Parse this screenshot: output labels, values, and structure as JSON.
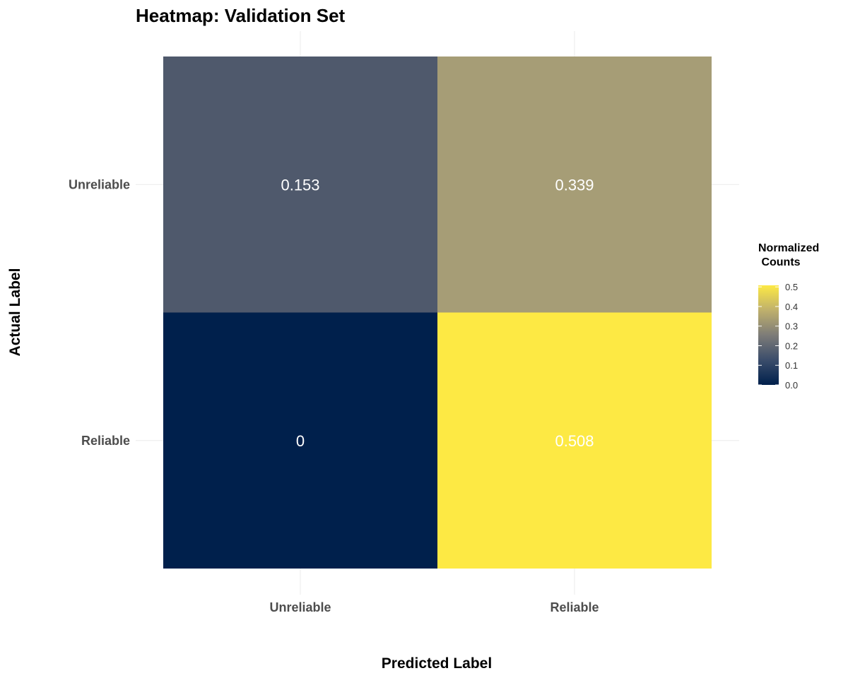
{
  "chart_data": {
    "type": "heatmap",
    "title": "Heatmap: Validation Set",
    "xlabel": "Predicted Label",
    "ylabel": "Actual Label",
    "x_categories": [
      "Unreliable",
      "Reliable"
    ],
    "y_categories": [
      "Unreliable",
      "Reliable"
    ],
    "cells": [
      {
        "actual": "Unreliable",
        "predicted": "Unreliable",
        "value": 0.153,
        "label": "0.153"
      },
      {
        "actual": "Unreliable",
        "predicted": "Reliable",
        "value": 0.339,
        "label": "0.339"
      },
      {
        "actual": "Reliable",
        "predicted": "Unreliable",
        "value": 0,
        "label": "0"
      },
      {
        "actual": "Reliable",
        "predicted": "Reliable",
        "value": 0.508,
        "label": "0.508"
      }
    ],
    "legend": {
      "title_line1": "Normalized",
      "title_line2": " Counts",
      "ticks": [
        "0.0",
        "0.1",
        "0.2",
        "0.3",
        "0.4",
        "0.5"
      ],
      "tick_values": [
        0,
        0.1,
        0.2,
        0.3,
        0.4,
        0.5
      ],
      "range": [
        0,
        0.508
      ],
      "placement": "right"
    },
    "colors": {
      "cell_fills": [
        "#4f596c",
        "#a69d76",
        "#00204c",
        "#fde944"
      ],
      "gradient_stops": [
        "#00204c",
        "#3b4d6b",
        "#7d7c78",
        "#bfb06c",
        "#fde944"
      ],
      "cell_text": "#ffffff",
      "grid": "#ebebeb"
    },
    "grid": true
  }
}
